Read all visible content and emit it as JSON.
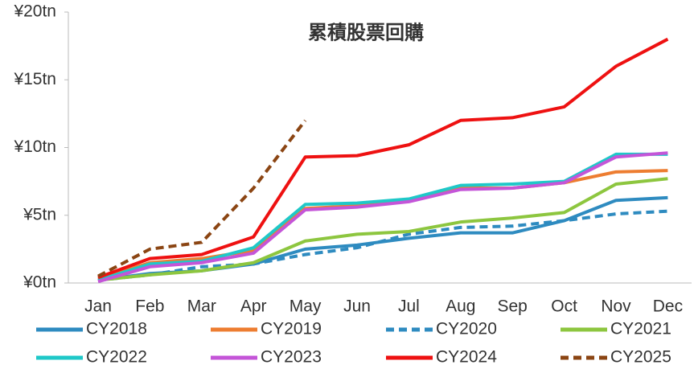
{
  "chart_data": {
    "type": "line",
    "title": "累積股票回購",
    "categories": [
      "Jan",
      "Feb",
      "Mar",
      "Apr",
      "May",
      "Jun",
      "Jul",
      "Aug",
      "Sep",
      "Oct",
      "Nov",
      "Dec"
    ],
    "ylim": [
      0,
      20
    ],
    "yticks": [
      {
        "value": 0,
        "label": "¥0tn"
      },
      {
        "value": 5,
        "label": "¥5tn"
      },
      {
        "value": 10,
        "label": "¥10tn"
      },
      {
        "value": 15,
        "label": "¥15tn"
      },
      {
        "value": 20,
        "label": "¥20tn"
      }
    ],
    "grid": false,
    "legend": "bottom",
    "series": [
      {
        "name": "CY2018",
        "color": "#2e8bc0",
        "dashed": false,
        "values": [
          0.2,
          0.7,
          0.9,
          1.4,
          2.5,
          2.8,
          3.3,
          3.7,
          3.7,
          4.6,
          6.1,
          6.3
        ]
      },
      {
        "name": "CY2019",
        "color": "#ed7d31",
        "dashed": false,
        "values": [
          0.3,
          1.5,
          1.8,
          2.4,
          5.5,
          5.7,
          6.1,
          7.0,
          7.0,
          7.4,
          8.2,
          8.3
        ]
      },
      {
        "name": "CY2020",
        "color": "#2e8bc0",
        "dashed": true,
        "values": [
          0.2,
          0.6,
          1.2,
          1.4,
          2.1,
          2.6,
          3.6,
          4.1,
          4.2,
          4.6,
          5.1,
          5.3
        ]
      },
      {
        "name": "CY2021",
        "color": "#8dc63f",
        "dashed": false,
        "values": [
          0.2,
          0.6,
          0.9,
          1.5,
          3.1,
          3.6,
          3.8,
          4.5,
          4.8,
          5.2,
          7.3,
          7.7
        ]
      },
      {
        "name": "CY2022",
        "color": "#1fc8c8",
        "dashed": false,
        "values": [
          0.2,
          1.4,
          1.6,
          2.6,
          5.8,
          5.9,
          6.2,
          7.2,
          7.3,
          7.5,
          9.5,
          9.5
        ]
      },
      {
        "name": "CY2023",
        "color": "#c455d8",
        "dashed": false,
        "values": [
          0.1,
          1.2,
          1.5,
          2.2,
          5.4,
          5.6,
          6.0,
          6.9,
          7.0,
          7.4,
          9.3,
          9.6
        ]
      },
      {
        "name": "CY2024",
        "color": "#ee1111",
        "dashed": false,
        "values": [
          0.4,
          1.8,
          2.1,
          3.4,
          9.3,
          9.4,
          10.2,
          12.0,
          12.2,
          13.0,
          16.0,
          18.0
        ]
      },
      {
        "name": "CY2025",
        "color": "#8b4513",
        "dashed": true,
        "values": [
          0.5,
          2.5,
          3.0,
          7.0,
          12.0,
          null,
          null,
          null,
          null,
          null,
          null,
          null
        ]
      }
    ]
  }
}
